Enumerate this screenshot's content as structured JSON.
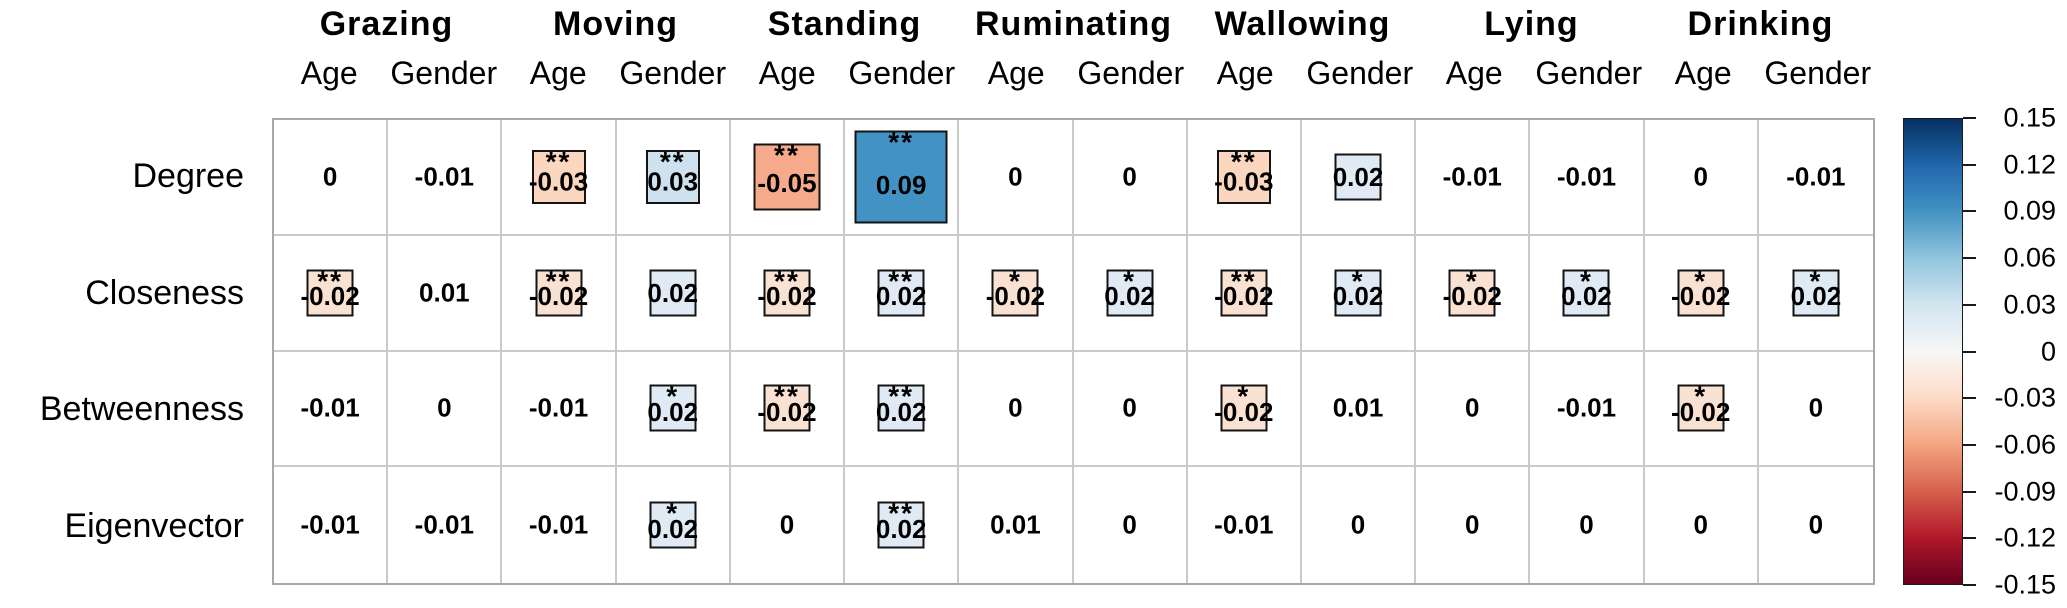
{
  "chart_data": {
    "type": "heatmap",
    "description": "Correlation heatmap of network centrality measures vs Age and Gender across cattle behaviours; square size and colour encode coefficient magnitude, asterisks mark significance",
    "col_groups": [
      "Grazing",
      "Moving",
      "Standing",
      "Ruminating",
      "Wallowing",
      "Lying",
      "Drinking"
    ],
    "sub_cols": [
      "Age",
      "Gender"
    ],
    "rows": [
      "Degree",
      "Closeness",
      "Betweenness",
      "Eigenvector"
    ],
    "cells": [
      [
        {
          "v": 0
        },
        {
          "v": -0.01
        },
        {
          "v": -0.03,
          "s": "**"
        },
        {
          "v": 0.03,
          "s": "**"
        },
        {
          "v": -0.05,
          "s": "**"
        },
        {
          "v": 0.09,
          "s": "**"
        },
        {
          "v": 0
        },
        {
          "v": 0
        },
        {
          "v": -0.03,
          "s": "**"
        },
        {
          "v": 0.02
        },
        {
          "v": -0.01
        },
        {
          "v": -0.01
        },
        {
          "v": 0
        },
        {
          "v": -0.01
        }
      ],
      [
        {
          "v": -0.02,
          "s": "**"
        },
        {
          "v": 0.01
        },
        {
          "v": -0.02,
          "s": "**"
        },
        {
          "v": 0.02
        },
        {
          "v": -0.02,
          "s": "**"
        },
        {
          "v": 0.02,
          "s": "**"
        },
        {
          "v": -0.02,
          "s": "*"
        },
        {
          "v": 0.02,
          "s": "*"
        },
        {
          "v": -0.02,
          "s": "**"
        },
        {
          "v": 0.02,
          "s": "*"
        },
        {
          "v": -0.02,
          "s": "*"
        },
        {
          "v": 0.02,
          "s": "*"
        },
        {
          "v": -0.02,
          "s": "*"
        },
        {
          "v": 0.02,
          "s": "*"
        }
      ],
      [
        {
          "v": -0.01
        },
        {
          "v": 0
        },
        {
          "v": -0.01
        },
        {
          "v": 0.02,
          "s": "*"
        },
        {
          "v": -0.02,
          "s": "**"
        },
        {
          "v": 0.02,
          "s": "**"
        },
        {
          "v": 0
        },
        {
          "v": 0
        },
        {
          "v": -0.02,
          "s": "*"
        },
        {
          "v": 0.01
        },
        {
          "v": 0
        },
        {
          "v": -0.01
        },
        {
          "v": -0.02,
          "s": "*"
        },
        {
          "v": 0
        }
      ],
      [
        {
          "v": -0.01
        },
        {
          "v": -0.01
        },
        {
          "v": -0.01
        },
        {
          "v": 0.02,
          "s": "*"
        },
        {
          "v": 0
        },
        {
          "v": 0.02,
          "s": "**"
        },
        {
          "v": 0.01
        },
        {
          "v": 0
        },
        {
          "v": -0.01
        },
        {
          "v": 0
        },
        {
          "v": 0
        },
        {
          "v": 0
        },
        {
          "v": 0
        },
        {
          "v": 0
        }
      ]
    ],
    "value_colors": {
      "0.02": "#dfeaf4",
      "0.03": "#cde1ee",
      "0.09": "#4392c4",
      "-0.02": "#fae2d2",
      "-0.03": "#fcd7bf",
      "-0.05": "#f5ab8b"
    },
    "colorbar": {
      "min": -0.15,
      "max": 0.15,
      "ticks": [
        "0.15",
        "0.12",
        "0.09",
        "0.06",
        "0.03",
        "0",
        "-0.03",
        "-0.06",
        "-0.09",
        "-0.12",
        "-0.15"
      ],
      "gradient_top_to_bottom": [
        "#053061",
        "#2166ac",
        "#4393c3",
        "#92c5de",
        "#d1e5f0",
        "#f7f7f7",
        "#fddbc7",
        "#f4a582",
        "#d6604d",
        "#b2182b",
        "#67001f"
      ]
    },
    "legend_position": "right",
    "grid": true
  }
}
